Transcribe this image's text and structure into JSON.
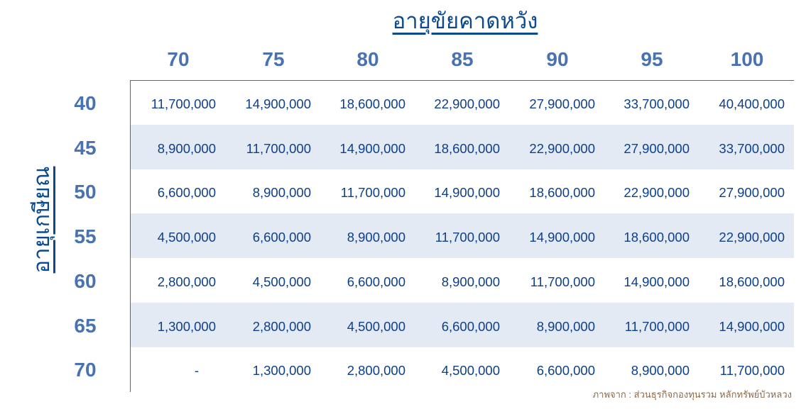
{
  "title": "อายุขัยคาดหวัง",
  "row_axis_title": "อายุเกษียณ",
  "columns": [
    "70",
    "75",
    "80",
    "85",
    "90",
    "95",
    "100"
  ],
  "rows": [
    {
      "label": "40",
      "values": [
        "11,700,000",
        "14,900,000",
        "18,600,000",
        "22,900,000",
        "27,900,000",
        "33,700,000",
        "40,400,000"
      ]
    },
    {
      "label": "45",
      "values": [
        "8,900,000",
        "11,700,000",
        "14,900,000",
        "18,600,000",
        "22,900,000",
        "27,900,000",
        "33,700,000"
      ]
    },
    {
      "label": "50",
      "values": [
        "6,600,000",
        "8,900,000",
        "11,700,000",
        "14,900,000",
        "18,600,000",
        "22,900,000",
        "27,900,000"
      ]
    },
    {
      "label": "55",
      "values": [
        "4,500,000",
        "6,600,000",
        "8,900,000",
        "11,700,000",
        "14,900,000",
        "18,600,000",
        "22,900,000"
      ]
    },
    {
      "label": "60",
      "values": [
        "2,800,000",
        "4,500,000",
        "6,600,000",
        "8,900,000",
        "11,700,000",
        "14,900,000",
        "18,600,000"
      ]
    },
    {
      "label": "65",
      "values": [
        "1,300,000",
        "2,800,000",
        "4,500,000",
        "6,600,000",
        "8,900,000",
        "11,700,000",
        "14,900,000"
      ]
    },
    {
      "label": "70",
      "values": [
        "-",
        "1,300,000",
        "2,800,000",
        "4,500,000",
        "6,600,000",
        "8,900,000",
        "11,700,000"
      ]
    }
  ],
  "source": "ภาพจาก : ส่วนธุรกิจกองทุนรวม หลักทรัพย์บัวหลวง",
  "colors": {
    "title": "#0b4a8f",
    "header": "#4a72b2",
    "cell_text": "#0d3f8c",
    "stripe": "#e4eaf4"
  }
}
